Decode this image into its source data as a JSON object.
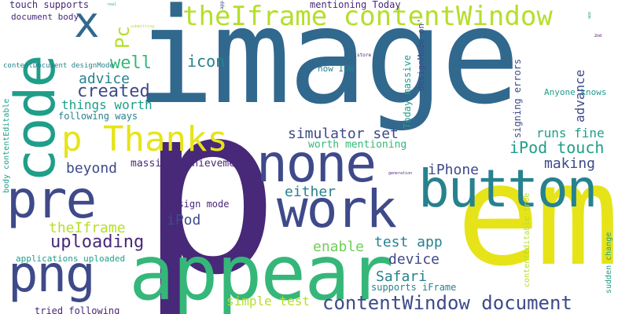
{
  "words": {
    "image": "image",
    "p_big": "p",
    "em": "em",
    "appear": "appear",
    "button": "button",
    "work": "work",
    "none": "none",
    "code": "code",
    "pre": "pre",
    "png": "png",
    "p_thanks": "p Thanks",
    "iframe_cw": "theIframe contentWindow",
    "x": "x",
    "pc": "Pc",
    "cw_document": "contentWindow document",
    "ipod_touch": "iPod touch",
    "simulator_set": "simulator set",
    "well": "well",
    "icon": "icon",
    "advice": "advice",
    "created": "created",
    "things_worth": "things worth",
    "following_ways": "following ways",
    "beyond": "beyond",
    "either": "either",
    "uploading": "uploading",
    "the_iframe": "theIframe",
    "design_mode": "design mode",
    "ipod": "iPod",
    "massive_achievement": "massive achievement",
    "worth_mentioning": "worth mentioning",
    "runs_fine": "runs fine",
    "making": "making",
    "iphone": "iPhone",
    "enable": "enable",
    "test_app": "test app",
    "device": "device",
    "safari": "Safari",
    "simple_test": "simple test",
    "supports_iframe": "supports iFrame",
    "touch_supports": "touch supports",
    "document_body": "document body",
    "cd_design_mode": "contentDocument designMode",
    "tried_following": "tried following",
    "apps_uploaded": "applications uploaded",
    "mentioning_today": "mentioning Today",
    "now_iow": "now IOW",
    "anyone_knows": "Anyone knows",
    "advance": "advance",
    "signing_errors": "signing errors",
    "today_massive": "Today massive",
    "design_mode_on": "designMode on'",
    "body_ce": "body contentEditable",
    "ce_true": "contentEditable true",
    "sudden_change": "sudden change",
    "submitting": "submitting",
    "real": "real",
    "app": "app",
    "store": "store",
    "difference": "difference",
    "generation": "generation",
    "second": "2nd",
    "tiny_top": "app"
  }
}
